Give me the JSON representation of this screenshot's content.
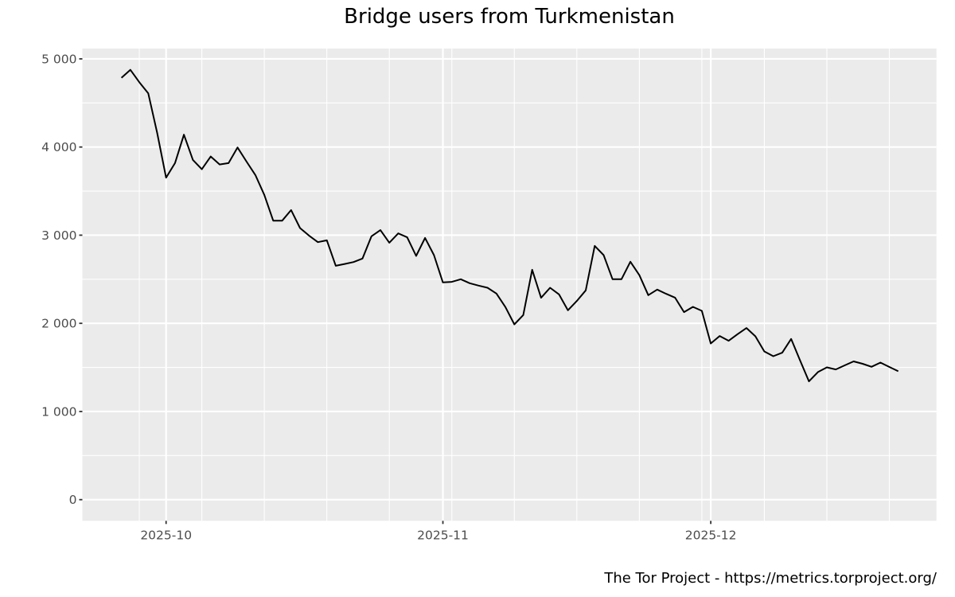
{
  "chart_data": {
    "type": "line",
    "title": "Bridge users from Turkmenistan",
    "xlabel": "",
    "ylabel": "",
    "caption": "The Tor Project - https://metrics.torproject.org/",
    "ylim": [
      0,
      5000
    ],
    "y_ticks": [
      0,
      1000,
      2000,
      3000,
      4000,
      5000
    ],
    "y_tick_labels": [
      "0",
      "1 000",
      "2 000",
      "3 000",
      "4 000",
      "5 000"
    ],
    "x_ticks": [
      "2025-10-01",
      "2025-11-01",
      "2025-12-01"
    ],
    "x_tick_labels": [
      "2025-10",
      "2025-11",
      "2025-12"
    ],
    "x_range": [
      "2025-09-26",
      "2025-12-22"
    ],
    "grid": true,
    "legend": "none",
    "colors": {
      "panel_background": "#EBEBEB",
      "grid": "#FFFFFF",
      "line": "#000000",
      "axis_text": "#4D4D4D",
      "tick": "#333333"
    },
    "series": [
      {
        "name": "Bridge users",
        "start_date": "2025-09-26",
        "x": [
          "2025-09-26",
          "2025-09-27",
          "2025-09-28",
          "2025-09-29",
          "2025-09-30",
          "2025-10-01",
          "2025-10-02",
          "2025-10-03",
          "2025-10-04",
          "2025-10-05",
          "2025-10-06",
          "2025-10-07",
          "2025-10-08",
          "2025-10-09",
          "2025-10-10",
          "2025-10-11",
          "2025-10-12",
          "2025-10-13",
          "2025-10-14",
          "2025-10-15",
          "2025-10-16",
          "2025-10-17",
          "2025-10-18",
          "2025-10-19",
          "2025-10-20",
          "2025-10-21",
          "2025-10-22",
          "2025-10-23",
          "2025-10-24",
          "2025-10-25",
          "2025-10-26",
          "2025-10-27",
          "2025-10-28",
          "2025-10-29",
          "2025-10-30",
          "2025-10-31",
          "2025-11-01",
          "2025-11-02",
          "2025-11-03",
          "2025-11-04",
          "2025-11-05",
          "2025-11-06",
          "2025-11-07",
          "2025-11-08",
          "2025-11-09",
          "2025-11-10",
          "2025-11-11",
          "2025-11-12",
          "2025-11-13",
          "2025-11-14",
          "2025-11-15",
          "2025-11-16",
          "2025-11-17",
          "2025-11-18",
          "2025-11-19",
          "2025-11-20",
          "2025-11-21",
          "2025-11-22",
          "2025-11-23",
          "2025-11-24",
          "2025-11-25",
          "2025-11-26",
          "2025-11-27",
          "2025-11-28",
          "2025-11-29",
          "2025-11-30",
          "2025-12-01",
          "2025-12-02",
          "2025-12-03",
          "2025-12-04",
          "2025-12-05",
          "2025-12-06",
          "2025-12-07",
          "2025-12-08",
          "2025-12-09",
          "2025-12-10",
          "2025-12-11",
          "2025-12-12",
          "2025-12-13",
          "2025-12-14",
          "2025-12-15",
          "2025-12-16",
          "2025-12-17",
          "2025-12-18",
          "2025-12-19",
          "2025-12-20",
          "2025-12-21",
          "2025-12-22"
        ],
        "values": [
          4786,
          4876,
          4736,
          4609,
          4160,
          3652,
          3818,
          4140,
          3854,
          3748,
          3893,
          3802,
          3818,
          3995,
          3836,
          3682,
          3457,
          3165,
          3165,
          3285,
          3081,
          2996,
          2921,
          2942,
          2653,
          2674,
          2695,
          2735,
          2988,
          3057,
          2915,
          3020,
          2976,
          2765,
          2969,
          2774,
          2464,
          2470,
          2500,
          2455,
          2428,
          2404,
          2338,
          2184,
          1988,
          2094,
          2608,
          2290,
          2404,
          2329,
          2148,
          2254,
          2374,
          2879,
          2774,
          2500,
          2500,
          2699,
          2546,
          2320,
          2383,
          2335,
          2292,
          2127,
          2187,
          2142,
          1772,
          1856,
          1802,
          1877,
          1947,
          1853,
          1681,
          1627,
          1667,
          1823,
          1580,
          1342,
          1447,
          1501,
          1477,
          1523,
          1568,
          1541,
          1507,
          1555,
          1505,
          1456
        ]
      }
    ]
  }
}
